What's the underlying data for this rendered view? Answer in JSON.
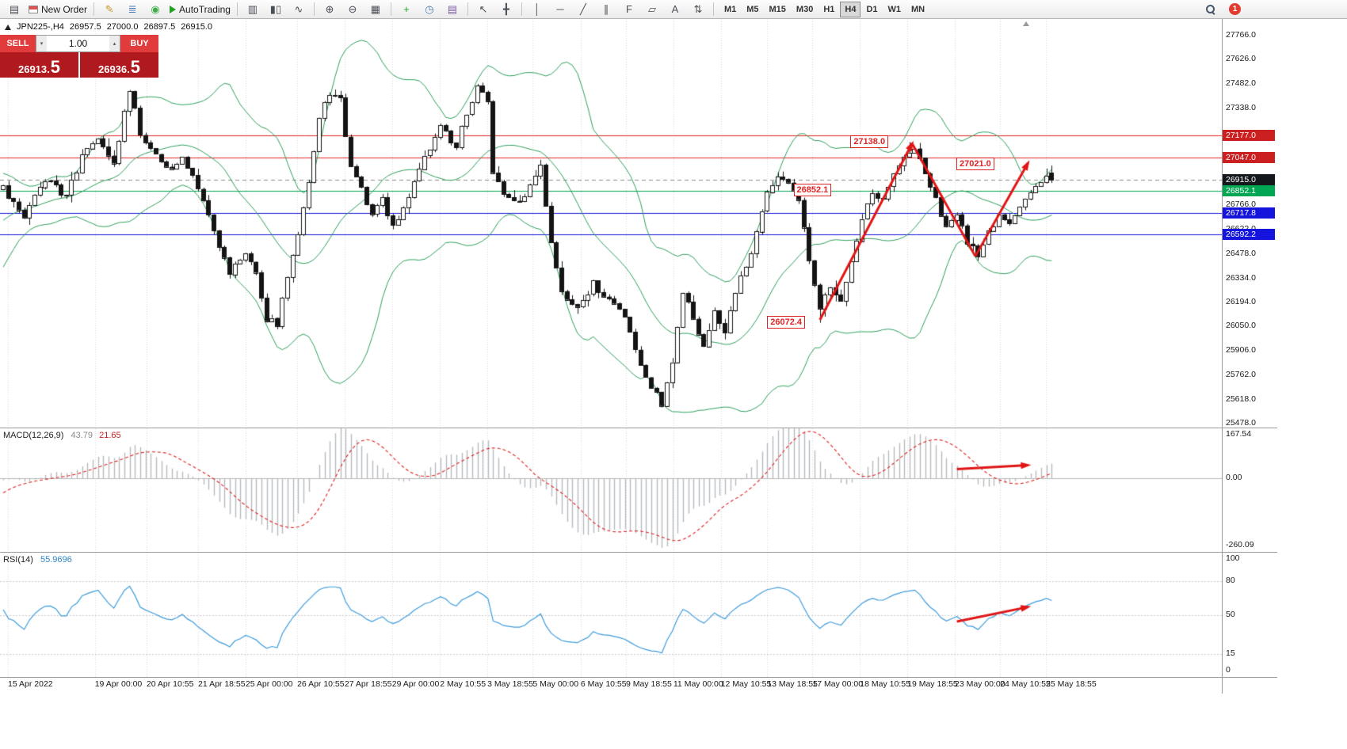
{
  "colors": {
    "grid": "#d9d9de",
    "candle": "#141414",
    "bollinger": "#2e9e5b",
    "macd_hist": "#b6babe",
    "macd_signal": "#e02020",
    "rsi_line": "#3d9bdc",
    "arrow": "#e01515",
    "hline_red": "#e02423",
    "hline_green": "#00a651",
    "hline_blue": "#1414dc",
    "flag_red": "#cc1f1f",
    "flag_green": "#00a651",
    "flag_blue": "#1414dc",
    "flag_black": "#14181d",
    "sell_button": "#e23b3b",
    "price_panel": "#b0191e"
  },
  "toolbar": {
    "items": [
      {
        "type": "icon",
        "name": "new-chart-icon",
        "glyph": "▤"
      },
      {
        "type": "button",
        "name": "new-order-button",
        "icon": "new-order-icon",
        "label": "New Order"
      },
      {
        "type": "sep"
      },
      {
        "type": "icon",
        "name": "metaeditor-icon",
        "glyph": "✎",
        "color": "#c89b28"
      },
      {
        "type": "icon",
        "name": "options-icon",
        "glyph": "≣",
        "color": "#4a7ab5"
      },
      {
        "type": "icon",
        "name": "mql5-community-icon",
        "glyph": "◉",
        "color": "#3fae49"
      },
      {
        "type": "button",
        "name": "autotrading-button",
        "icon": "autotrading-icon",
        "label": "AutoTrading"
      },
      {
        "type": "sep"
      },
      {
        "type": "icon",
        "name": "bar-chart-icon",
        "glyph": "▥"
      },
      {
        "type": "icon",
        "name": "candlestick-chart-icon",
        "glyph": "▮▯"
      },
      {
        "type": "icon",
        "name": "line-chart-icon",
        "glyph": "∿"
      },
      {
        "type": "sep"
      },
      {
        "type": "icon",
        "name": "zoom-in-icon",
        "glyph": "⊕"
      },
      {
        "type": "icon",
        "name": "zoom-out-icon",
        "glyph": "⊖"
      },
      {
        "type": "icon",
        "name": "tile-windows-icon",
        "glyph": "▦"
      },
      {
        "type": "sep"
      },
      {
        "type": "icon",
        "name": "indicators-icon",
        "glyph": "+",
        "color": "#2e9e30"
      },
      {
        "type": "icon",
        "name": "periods-icon",
        "glyph": "◷",
        "color": "#4a7ab5"
      },
      {
        "type": "icon",
        "name": "templates-icon",
        "glyph": "▤",
        "color": "#7a5c9e"
      },
      {
        "type": "sep"
      },
      {
        "type": "icon",
        "name": "cursor-icon",
        "glyph": "↖"
      },
      {
        "type": "icon",
        "name": "crosshair-icon",
        "glyph": "╋"
      },
      {
        "type": "sep"
      },
      {
        "type": "icon",
        "name": "vertical-line-icon",
        "glyph": "│"
      },
      {
        "type": "icon",
        "name": "horizontal-line-icon",
        "glyph": "─"
      },
      {
        "type": "icon",
        "name": "trendline-icon",
        "glyph": "╱"
      },
      {
        "type": "icon",
        "name": "equidistant-channel-icon",
        "glyph": "∥"
      },
      {
        "type": "icon",
        "name": "fibonacci-icon",
        "glyph": "F"
      },
      {
        "type": "icon",
        "name": "shapes-icon",
        "glyph": "▱"
      },
      {
        "type": "icon",
        "name": "text-icon",
        "glyph": "A"
      },
      {
        "type": "icon",
        "name": "arrows-icon",
        "glyph": "⇅"
      },
      {
        "type": "sep"
      },
      {
        "type": "timeframes"
      },
      {
        "type": "spacer"
      },
      {
        "type": "search"
      },
      {
        "type": "badge"
      }
    ],
    "timeframes": [
      "M1",
      "M5",
      "M15",
      "M30",
      "H1",
      "H4",
      "D1",
      "W1",
      "MN"
    ],
    "active_timeframe": "H4",
    "notification_count": "1"
  },
  "symbol_bar": {
    "symbol_period": "JPN225-,H4",
    "open": "26957.5",
    "high": "27000.0",
    "low": "26897.5",
    "close": "26915.0"
  },
  "trade_panel": {
    "sell_label": "SELL",
    "buy_label": "BUY",
    "volume": "1.00",
    "sell_price_main": "26913.",
    "sell_price_pip": "5",
    "buy_price_main": "26936.",
    "buy_price_pip": "5"
  },
  "chart_data": {
    "type": "candlestick",
    "symbol": "JPN225-",
    "timeframe": "H4",
    "last_ohlc": {
      "open": 26957.5,
      "high": 27000.0,
      "low": 26897.5,
      "close": 26915.0
    },
    "current_price": 26915.0,
    "candle_count": 200,
    "noise_seed": 3,
    "price_anchors": [
      [
        -40,
        27700
      ],
      [
        -30,
        26900
      ],
      [
        -20,
        26350
      ],
      [
        -12,
        26700
      ],
      [
        -6,
        26750
      ],
      [
        0,
        26860
      ],
      [
        4,
        26700
      ],
      [
        8,
        26920
      ],
      [
        12,
        26820
      ],
      [
        15,
        27060
      ],
      [
        18,
        27180
      ],
      [
        21,
        27000
      ],
      [
        24,
        27460
      ],
      [
        26,
        27180
      ],
      [
        28,
        27120
      ],
      [
        31,
        26980
      ],
      [
        34,
        27050
      ],
      [
        37,
        26870
      ],
      [
        40,
        26620
      ],
      [
        43,
        26380
      ],
      [
        46,
        26500
      ],
      [
        48,
        26350
      ],
      [
        50,
        26100
      ],
      [
        52,
        26060
      ],
      [
        54,
        26350
      ],
      [
        56,
        26600
      ],
      [
        58,
        26900
      ],
      [
        60,
        27300
      ],
      [
        62,
        27430
      ],
      [
        64,
        27380
      ],
      [
        66,
        27000
      ],
      [
        68,
        26850
      ],
      [
        70,
        26700
      ],
      [
        72,
        26800
      ],
      [
        74,
        26640
      ],
      [
        77,
        26830
      ],
      [
        80,
        27050
      ],
      [
        83,
        27230
      ],
      [
        86,
        27120
      ],
      [
        88,
        27300
      ],
      [
        90,
        27460
      ],
      [
        92,
        27380
      ],
      [
        93,
        26950
      ],
      [
        95,
        26820
      ],
      [
        98,
        26780
      ],
      [
        100,
        26900
      ],
      [
        102,
        27000
      ],
      [
        104,
        26550
      ],
      [
        106,
        26250
      ],
      [
        109,
        26150
      ],
      [
        112,
        26300
      ],
      [
        115,
        26200
      ],
      [
        118,
        26100
      ],
      [
        120,
        25900
      ],
      [
        123,
        25700
      ],
      [
        125,
        25600
      ],
      [
        127,
        25850
      ],
      [
        129,
        26250
      ],
      [
        131,
        26100
      ],
      [
        133,
        25950
      ],
      [
        135,
        26150
      ],
      [
        137,
        26000
      ],
      [
        139,
        26250
      ],
      [
        142,
        26500
      ],
      [
        145,
        26850
      ],
      [
        147,
        26950
      ],
      [
        149,
        26900
      ],
      [
        151,
        26800
      ],
      [
        153,
        26450
      ],
      [
        155,
        26150
      ],
      [
        157,
        26300
      ],
      [
        159,
        26200
      ],
      [
        161,
        26450
      ],
      [
        163,
        26700
      ],
      [
        165,
        26850
      ],
      [
        167,
        26800
      ],
      [
        169,
        26950
      ],
      [
        171,
        27050
      ],
      [
        173,
        27120
      ],
      [
        175,
        26950
      ],
      [
        177,
        26800
      ],
      [
        179,
        26650
      ],
      [
        181,
        26700
      ],
      [
        183,
        26550
      ],
      [
        185,
        26480
      ],
      [
        187,
        26600
      ],
      [
        189,
        26700
      ],
      [
        191,
        26650
      ],
      [
        193,
        26750
      ],
      [
        195,
        26850
      ],
      [
        197,
        26880
      ],
      [
        198,
        26950
      ],
      [
        199,
        26915
      ]
    ],
    "key_points": {
      "labeled_low": {
        "index": 155,
        "price": 26072.4
      },
      "labeled_high": {
        "index": 172,
        "price": 27138.0
      }
    },
    "bollinger": {
      "period": 20,
      "deviation": 2
    },
    "horizontal_lines": [
      {
        "price": 27177.0,
        "color": "red"
      },
      {
        "price": 27047.0,
        "color": "red"
      },
      {
        "price": 26852.1,
        "color": "green"
      },
      {
        "price": 26717.8,
        "color": "blue"
      },
      {
        "price": 26592.2,
        "color": "blue"
      }
    ],
    "price_axis_ticks": [
      "27766.0",
      "27626.0",
      "27482.0",
      "27338.0",
      "26766.0",
      "26622.0",
      "26478.0",
      "26334.0",
      "26194.0",
      "26050.0",
      "25906.0",
      "25762.0",
      "25618.0",
      "25478.0"
    ],
    "axis_price_labels": [
      {
        "text": "27177.0",
        "style": "red"
      },
      {
        "text": "27047.0",
        "style": "red"
      },
      {
        "text": "26915.0",
        "style": "black"
      },
      {
        "text": "26852.1",
        "style": "green"
      },
      {
        "text": "26717.8",
        "style": "blue"
      },
      {
        "text": "26592.2",
        "style": "blue"
      }
    ],
    "time_labels": [
      {
        "i": 0.9,
        "text": "15 Apr 2022"
      },
      {
        "i": 17.4,
        "text": "19 Apr 00:00"
      },
      {
        "i": 27.2,
        "text": "20 Apr 10:55"
      },
      {
        "i": 37.0,
        "text": "21 Apr 18:55"
      },
      {
        "i": 46.0,
        "text": "25 Apr 00:00"
      },
      {
        "i": 55.8,
        "text": "26 Apr 10:55"
      },
      {
        "i": 64.8,
        "text": "27 Apr 18:55"
      },
      {
        "i": 73.8,
        "text": "29 Apr 00:00"
      },
      {
        "i": 82.9,
        "text": "2 May 10:55"
      },
      {
        "i": 91.9,
        "text": "3 May 18:55"
      },
      {
        "i": 100.5,
        "text": "5 May 00:00"
      },
      {
        "i": 109.6,
        "text": "6 May 10:55"
      },
      {
        "i": 118.2,
        "text": "9 May 18:55"
      },
      {
        "i": 127.2,
        "text": "11 May 00:00"
      },
      {
        "i": 136.2,
        "text": "12 May 10:55"
      },
      {
        "i": 145.0,
        "text": "13 May 18:55"
      },
      {
        "i": 153.6,
        "text": "17 May 00:00"
      },
      {
        "i": 162.6,
        "text": "18 May 10:55"
      },
      {
        "i": 171.6,
        "text": "19 May 18:55"
      },
      {
        "i": 180.6,
        "text": "23 May 00:00"
      },
      {
        "i": 189.2,
        "text": "24 May 10:55"
      },
      {
        "i": 197.9,
        "text": "25 May 18:55"
      }
    ],
    "annotations": [
      {
        "text": "27138.0",
        "i": 160.8,
        "price": 27140
      },
      {
        "text": "27021.0",
        "i": 180.9,
        "price": 27010
      },
      {
        "text": "26852.1",
        "i": 150.0,
        "price": 26855
      },
      {
        "text": "26072.4",
        "i": 145.0,
        "price": 26076
      }
    ],
    "trend_arrows": [
      {
        "points": [
          [
            155,
            26090
          ],
          [
            172.5,
            27130
          ]
        ],
        "head": true
      },
      {
        "points": [
          [
            172.5,
            27130
          ],
          [
            184.5,
            26465
          ]
        ],
        "head": false
      },
      {
        "points": [
          [
            184.5,
            26465
          ],
          [
            194.5,
            27015
          ]
        ],
        "head": true
      }
    ],
    "macd": {
      "label": "MACD(12,26,9)",
      "values": [
        "43.79",
        "21.65"
      ],
      "fast": 12,
      "slow": 26,
      "signal": 9,
      "axis_max": 167.54,
      "axis_min": -260.09,
      "axis_ticks": [
        {
          "text": "167.54",
          "v": 167.54
        },
        {
          "text": "0.00",
          "v": 0
        },
        {
          "text": "-260.09",
          "v": -260.09
        }
      ],
      "arrow": {
        "points": [
          [
            181,
            35
          ],
          [
            194.5,
            50
          ]
        ]
      }
    },
    "rsi": {
      "label": "RSI(14)",
      "value": "55.9696",
      "period": 14,
      "levels": [
        80,
        50,
        15
      ],
      "axis_ticks": [
        {
          "text": "100",
          "v": 100
        },
        {
          "text": "80",
          "v": 80
        },
        {
          "text": "50",
          "v": 50
        },
        {
          "text": "15",
          "v": 15
        },
        {
          "text": "0",
          "v": 0
        }
      ],
      "arrow": {
        "points": [
          [
            181,
            44
          ],
          [
            194.5,
            57
          ]
        ]
      }
    }
  }
}
